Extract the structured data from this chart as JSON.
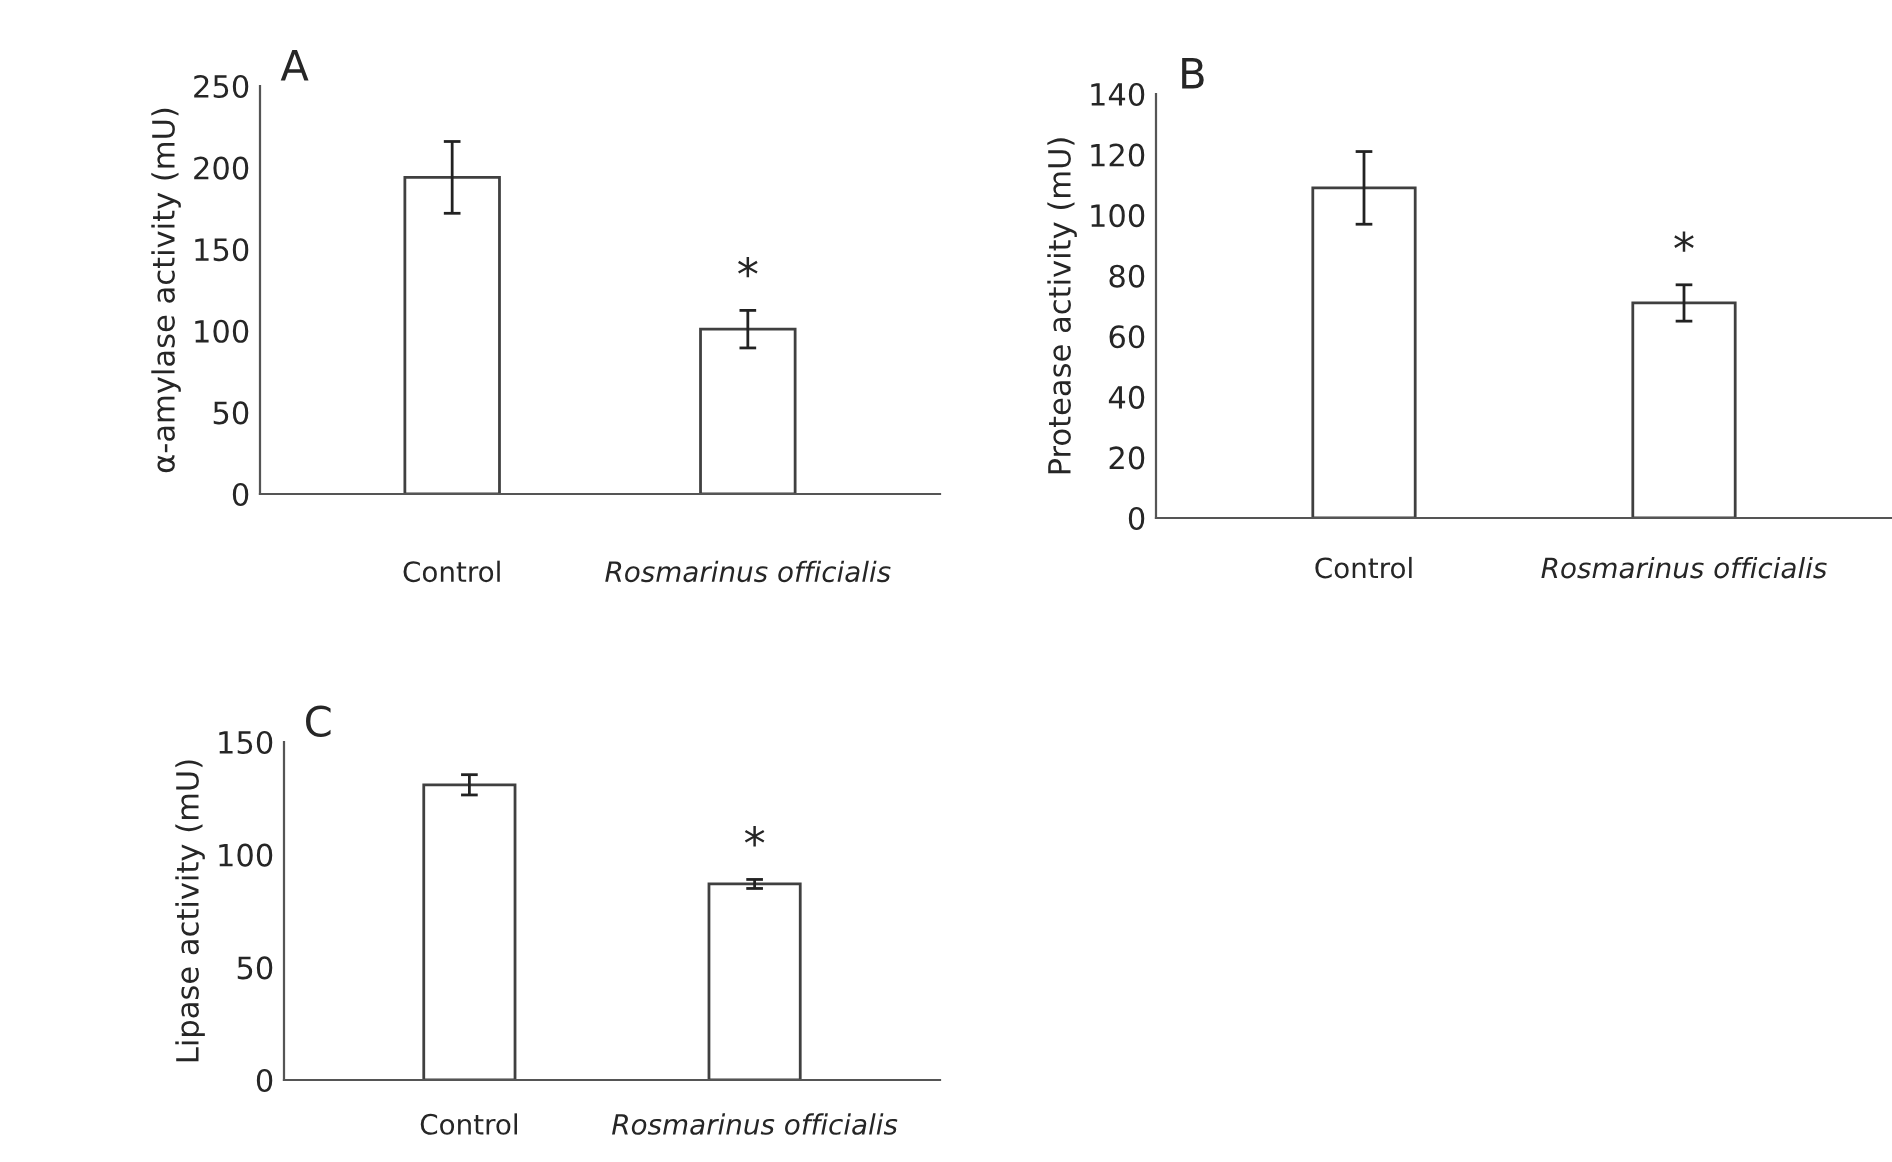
{
  "chart_data": [
    {
      "type": "bar",
      "title": "A",
      "ylabel": "α-amylase activity (mU)",
      "categories": [
        "Control",
        "Rosmarinus officialis"
      ],
      "values": [
        194,
        101
      ],
      "errors": [
        22,
        11.5
      ],
      "color": "#ffffff",
      "ylim": [
        0,
        250
      ],
      "yticks": [
        0,
        50,
        100,
        150,
        200,
        250
      ],
      "grid": false,
      "annotations": [
        "*"
      ]
    },
    {
      "type": "bar",
      "title": "B",
      "ylabel": "Protease activity (mU)",
      "categories": [
        "Control",
        "Rosmarinus officialis"
      ],
      "values": [
        109,
        71
      ],
      "errors": [
        12,
        6
      ],
      "color": "#ffffff",
      "ylim": [
        0,
        140
      ],
      "yticks": [
        0,
        20,
        40,
        60,
        80,
        100,
        120,
        140
      ],
      "grid": false,
      "annotations": [
        "*"
      ]
    },
    {
      "type": "bar",
      "title": "C",
      "ylabel": "Lipase activity (mU)",
      "categories": [
        "Control",
        "Rosmarinus officialis"
      ],
      "values": [
        131,
        87
      ],
      "errors": [
        4.5,
        2
      ],
      "color": "#ffffff",
      "ylim": [
        0,
        150
      ],
      "yticks": [
        0,
        50,
        100,
        150
      ],
      "grid": false,
      "annotations": [
        "*"
      ]
    }
  ]
}
